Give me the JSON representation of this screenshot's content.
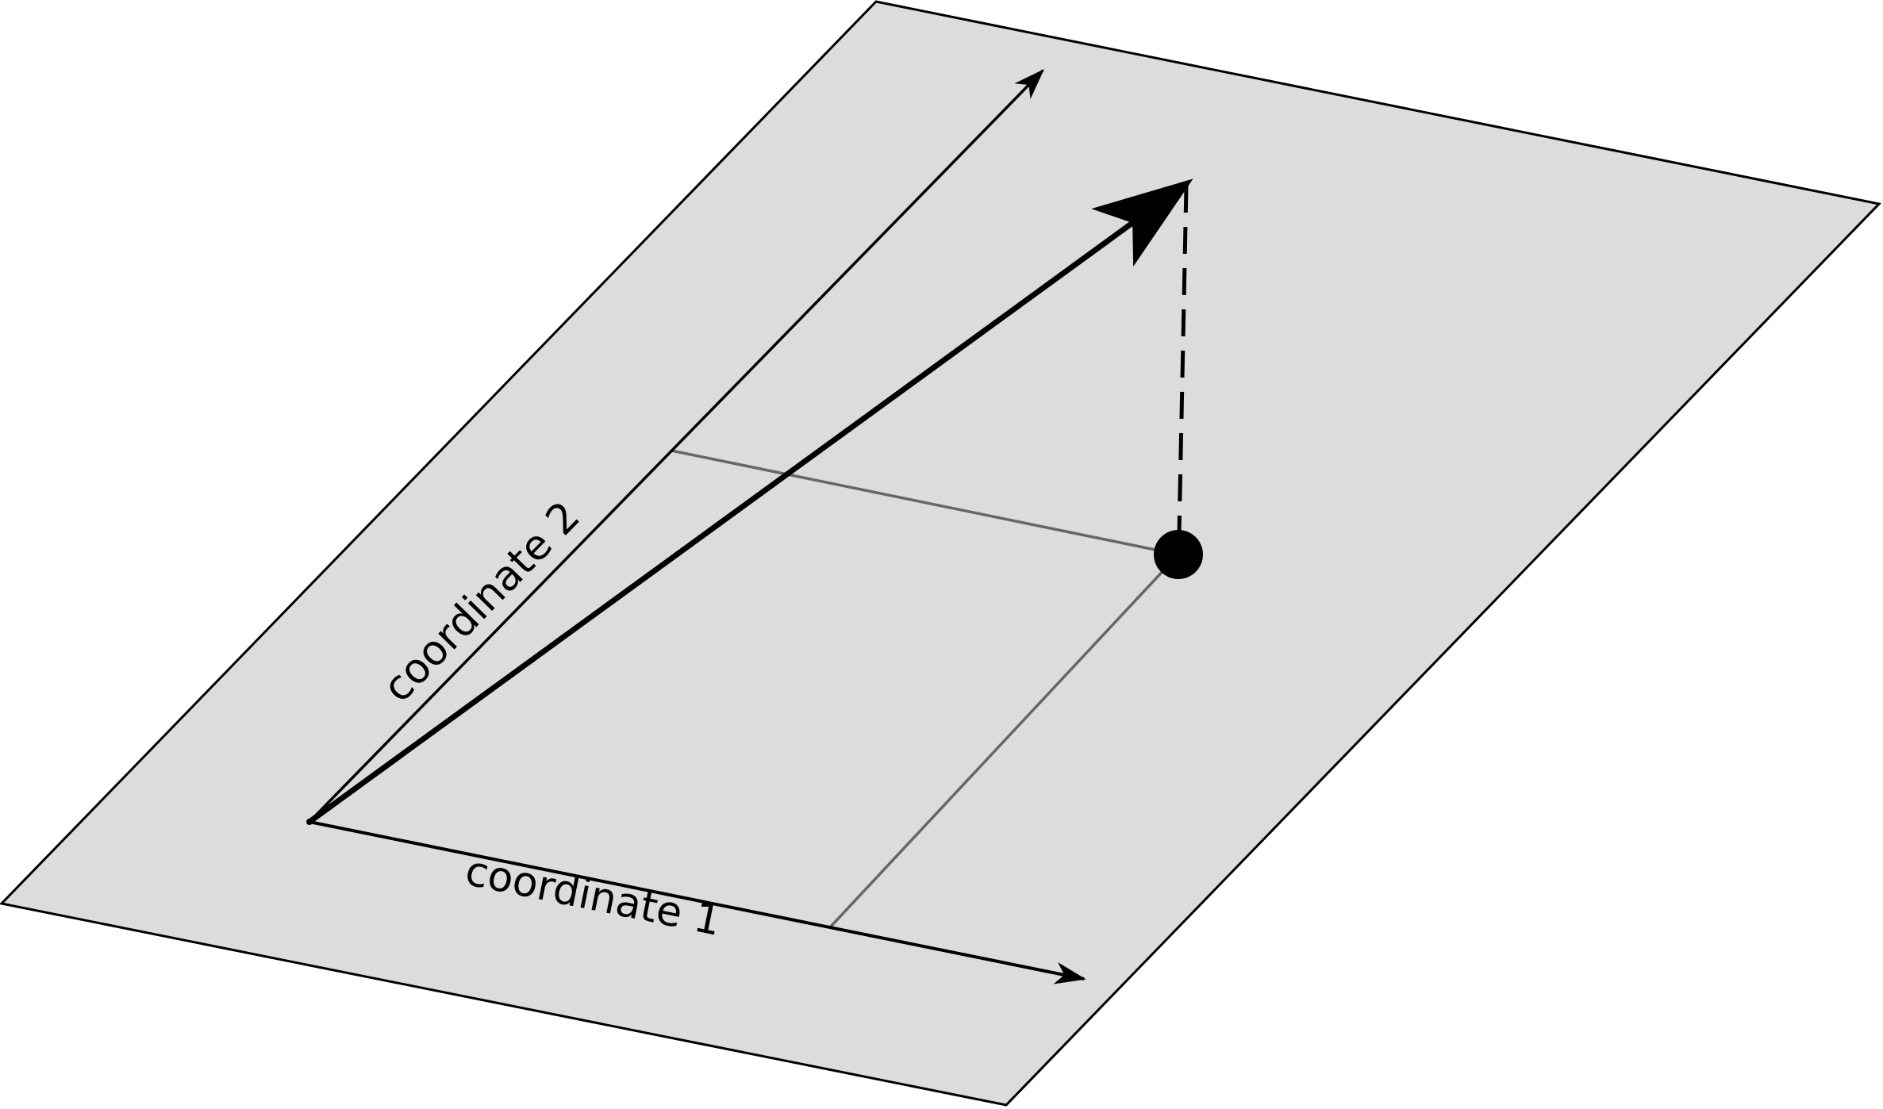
{
  "diagram": {
    "axis_1_label": "coordinate 1",
    "axis_2_label": "coordinate 2"
  },
  "colors": {
    "background": "#ffffff",
    "plane_fill": "#dcdcdc",
    "plane_stroke": "#000000",
    "axis": "#000000",
    "vector": "#000000",
    "projection_lines": "#666666",
    "point": "#000000"
  }
}
